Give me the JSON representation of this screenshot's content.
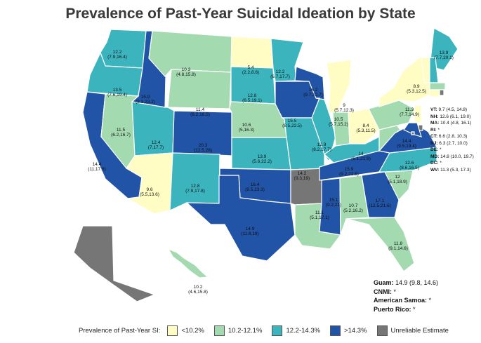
{
  "title": "Prevalence of Past-Year Suicidal Ideation by State",
  "colors": {
    "lt10_2": "#fffdc4",
    "r10_2_12_1": "#a4dab0",
    "r12_2_14_3": "#3bb4be",
    "gt14_3": "#2154a6",
    "unreliable": "#767676"
  },
  "states": {
    "WA": {
      "value": "12.2",
      "ci": "(7.9,16.4)",
      "bin": "r12_2_14_3"
    },
    "OR": {
      "value": "13.5",
      "ci": "(7.6,19.4)",
      "bin": "r12_2_14_3"
    },
    "CA": {
      "value": "14.4",
      "ci": "(11,17.8)",
      "bin": "gt14_3"
    },
    "ID": {
      "value": "15.8",
      "ci": "(8.3,23.2)",
      "bin": "gt14_3"
    },
    "NV": {
      "value": "11.5",
      "ci": "(6.2,16.7)",
      "bin": "r10_2_12_1"
    },
    "MT": {
      "value": "10.3",
      "ci": "(4.8,15.8)",
      "bin": "r10_2_12_1"
    },
    "WY": {
      "value": "11.4",
      "ci": "(6.2,16.5)",
      "bin": "r10_2_12_1"
    },
    "UT": {
      "value": "12.4",
      "ci": "(7,17.7)",
      "bin": "r12_2_14_3"
    },
    "AZ": {
      "value": "9.6",
      "ci": "(5.5,13.6)",
      "bin": "lt10_2"
    },
    "CO": {
      "value": "20.3",
      "ci": "(12.5,28)",
      "bin": "gt14_3"
    },
    "NM": {
      "value": "12.8",
      "ci": "(7.9,17.8)",
      "bin": "r12_2_14_3"
    },
    "ND": {
      "value": "5.4",
      "ci": "(2.2,8.6)",
      "bin": "lt10_2"
    },
    "SD": {
      "value": "12.8",
      "ci": "(6.5,19.1)",
      "bin": "r12_2_14_3"
    },
    "NE": {
      "value": "10.6",
      "ci": "(5,16.3)",
      "bin": "r10_2_12_1"
    },
    "KS": {
      "value": "13.9",
      "ci": "(5.6,22.2)",
      "bin": "r12_2_14_3"
    },
    "OK": {
      "value": "16.4",
      "ci": "(9.5,23.3)",
      "bin": "gt14_3"
    },
    "TX": {
      "value": "14.9",
      "ci": "(11.8,18)",
      "bin": "gt14_3"
    },
    "MN": {
      "value": "12.2",
      "ci": "(6.7,17.7)",
      "bin": "r12_2_14_3"
    },
    "IA": {
      "value": "15.5",
      "ci": "(8.5,22.5)",
      "bin": "gt14_3"
    },
    "MO": {
      "value": "14.2",
      "ci": "(9.3,19)",
      "bin": "r12_2_14_3"
    },
    "AR": {
      "value": "",
      "ci": "",
      "bin": "unreliable"
    },
    "LA": {
      "value": "11.1",
      "ci": "(5.1,17.1)",
      "bin": "r10_2_12_1"
    },
    "WI": {
      "value": "16.2",
      "ci": "(9.7,22.7)",
      "bin": "gt14_3"
    },
    "IL": {
      "value": "12.9",
      "ci": "(8.2,17.7)",
      "bin": "r12_2_14_3"
    },
    "MI": {
      "value": "9",
      "ci": "(5.7,12.3)",
      "bin": "lt10_2"
    },
    "IN": {
      "value": "10.5",
      "ci": "(5.7,15.2)",
      "bin": "r10_2_12_1"
    },
    "OH": {
      "value": "8.4",
      "ci": "(5.3,11.5)",
      "bin": "lt10_2"
    },
    "KY": {
      "value": "14",
      "ci": "(6.1,21.9)",
      "bin": "r12_2_14_3"
    },
    "TN": {
      "value": "15.9",
      "ci": "(9.2,22.6)",
      "bin": "gt14_3"
    },
    "MS": {
      "value": "15.1",
      "ci": "(9.2,21)",
      "bin": "gt14_3"
    },
    "AL": {
      "value": "10.7",
      "ci": "(5.2,16.2)",
      "bin": "r10_2_12_1"
    },
    "GA": {
      "value": "17.1",
      "ci": "(12.5,21.6)",
      "bin": "gt14_3"
    },
    "FL": {
      "value": "11.8",
      "ci": "(9.1,14.6)",
      "bin": "r10_2_12_1"
    },
    "SC": {
      "value": "12",
      "ci": "(5.1,18.9)",
      "bin": "r10_2_12_1"
    },
    "NC": {
      "value": "12.6",
      "ci": "(8.6,16.5)",
      "bin": "r12_2_14_3"
    },
    "VA": {
      "value": "14.4",
      "ci": "(9.5,19.4)",
      "bin": "gt14_3"
    },
    "WV": {
      "value": "",
      "ci": "",
      "bin": "r10_2_12_1"
    },
    "PA": {
      "value": "11.3",
      "ci": "(7.7,14.9)",
      "bin": "r10_2_12_1"
    },
    "NY": {
      "value": "8.9",
      "ci": "(5.3,12.5)",
      "bin": "lt10_2"
    },
    "ME": {
      "value": "13.9",
      "ci": "(7.7,20.1)",
      "bin": "r12_2_14_3"
    },
    "VT": {
      "value": "",
      "ci": "",
      "bin": "lt10_2"
    },
    "NH": {
      "value": "",
      "ci": "",
      "bin": "r12_2_14_3"
    },
    "MA": {
      "value": "",
      "ci": "",
      "bin": "r10_2_12_1"
    },
    "RI": {
      "value": "",
      "ci": "",
      "bin": "unreliable"
    },
    "CT": {
      "value": "",
      "ci": "",
      "bin": "lt10_2"
    },
    "NJ": {
      "value": "",
      "ci": "",
      "bin": "lt10_2"
    },
    "DE": {
      "value": "",
      "ci": "",
      "bin": "unreliable"
    },
    "MD": {
      "value": "",
      "ci": "",
      "bin": "gt14_3"
    },
    "DC": {
      "value": "",
      "ci": "",
      "bin": "unreliable"
    },
    "AK": {
      "value": "",
      "ci": "",
      "bin": "unreliable"
    },
    "HI": {
      "value": "10.2",
      "ci": "(4.6,15.8)",
      "bin": "r10_2_12_1"
    }
  },
  "small_states": [
    {
      "abbr": "VT:",
      "text": "9.7 (4.5, 14.8)"
    },
    {
      "abbr": "NH:",
      "text": "12.6 (6.1, 19.0)"
    },
    {
      "abbr": "MA:",
      "text": "10.4 (4.8, 16.1)"
    },
    {
      "abbr": "RI:",
      "text": "*"
    },
    {
      "abbr": "CT:",
      "text": "6.6 (2.8, 10.3)"
    },
    {
      "abbr": "NJ:",
      "text": "6.3 (2.7, 10.0)"
    },
    {
      "abbr": "DE:",
      "text": "*"
    },
    {
      "abbr": "MD:",
      "text": "14.8 (10.0, 19.7)"
    },
    {
      "abbr": "DC:",
      "text": "*"
    },
    {
      "abbr": "WV:",
      "text": "11.3 (5.3, 17.3)"
    }
  ],
  "territories": [
    {
      "name": "Guam:",
      "text": "14.9 (9.8, 14.6)"
    },
    {
      "name": "CNMI:",
      "text": "*"
    },
    {
      "name": "American Samoa:",
      "text": "*"
    },
    {
      "name": "Puerto Rico:",
      "text": "*"
    }
  ],
  "legend": {
    "title": "Prevalence of Past-Year SI:",
    "items": [
      {
        "label": "<10.2%",
        "bin": "lt10_2"
      },
      {
        "label": "10.2-12.1%",
        "bin": "r10_2_12_1"
      },
      {
        "label": "12.2-14.3%",
        "bin": "r12_2_14_3"
      },
      {
        "label": ">14.3%",
        "bin": "gt14_3"
      },
      {
        "label": "Unreliable Estimate",
        "bin": "unreliable"
      }
    ]
  }
}
